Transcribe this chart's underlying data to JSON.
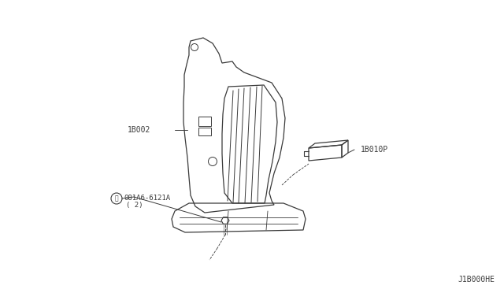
{
  "bg_color": "#ffffff",
  "line_color": "#3a3a3a",
  "label_color": "#3a3a3a",
  "part_label_1": "1B002",
  "part_label_2": "1B010P",
  "part_label_3": "081A6-6121A",
  "part_label_3b": "( 2)",
  "footnote": "J1B000HE",
  "lw": 0.9
}
